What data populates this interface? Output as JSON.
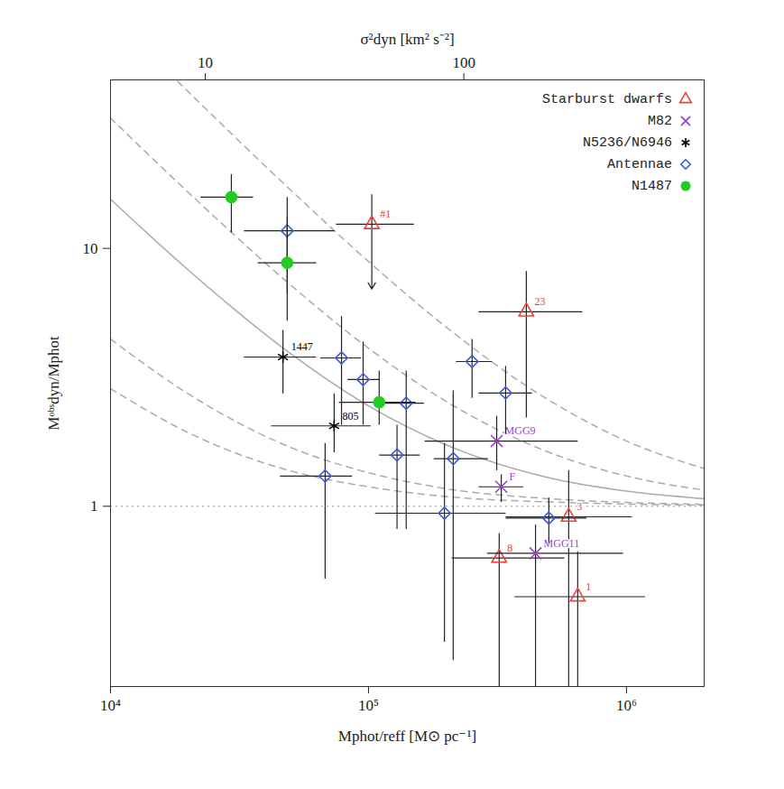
{
  "chart_data": {
    "type": "scatter",
    "x_label": "Mphot/reff [M⊙ pc⁻¹]",
    "y_label": "Mᵒᵇˢdyn/Mphot",
    "x2_label": "σ²dyn [km² s⁻²]",
    "log": true,
    "xlim": [
      10000,
      2000000
    ],
    "ylim": [
      0.2,
      45
    ],
    "x2lim": [
      4.3,
      850
    ],
    "xticks": [
      {
        "value": 10000,
        "label": "10⁴"
      },
      {
        "value": 100000,
        "label": "10⁵"
      },
      {
        "value": 1000000,
        "label": "10⁶"
      }
    ],
    "yticks": [
      1,
      10
    ],
    "x2ticks": [
      10,
      100
    ],
    "legend": "top-right",
    "reference_line": {
      "y": 1,
      "line_style": "dotted",
      "color": "#999999"
    },
    "curves": [
      {
        "line_style": "dashed",
        "color": "#aaaaaa",
        "x": [
          10000,
          20000,
          50000,
          100000,
          200000,
          500000,
          1000000,
          2000000
        ],
        "values": [
          80,
          40.5,
          16.8,
          8.9,
          4.95,
          2.58,
          1.79,
          1.4
        ]
      },
      {
        "line_style": "dashed",
        "color": "#aaaaaa",
        "x": [
          10000,
          20000,
          50000,
          100000,
          200000,
          500000,
          1000000,
          2000000
        ],
        "values": [
          32,
          16.5,
          7.2,
          4.1,
          2.55,
          1.62,
          1.31,
          1.155
        ]
      },
      {
        "line_style": "solid",
        "color": "#aaaaaa",
        "x": [
          10000,
          20000,
          50000,
          100000,
          200000,
          500000,
          1000000,
          2000000
        ],
        "values": [
          15.5,
          8.25,
          3.9,
          2.45,
          1.73,
          1.29,
          1.145,
          1.07
        ]
      },
      {
        "line_style": "dashed",
        "color": "#aaaaaa",
        "x": [
          10000,
          20000,
          50000,
          100000,
          200000,
          500000,
          1000000,
          2000000
        ],
        "values": [
          4.45,
          2.73,
          1.69,
          1.35,
          1.17,
          1.07,
          1.035,
          1.017
        ]
      },
      {
        "line_style": "dashed",
        "color": "#aaaaaa",
        "x": [
          10000,
          20000,
          50000,
          100000,
          200000,
          500000,
          1000000,
          2000000
        ],
        "values": [
          2.86,
          1.93,
          1.37,
          1.19,
          1.09,
          1.04,
          1.02,
          1.01
        ]
      }
    ],
    "series": [
      {
        "name": "Starburst dwarfs",
        "color": "#e8413a",
        "marker": "open_triangle",
        "x": [
          103000,
          409000,
          597000,
          321000,
          647000
        ],
        "values": [
          12.4,
          5.68,
          0.91,
          0.63,
          0.446
        ],
        "x_err_low": [
          74800,
          267000,
          340000,
          210000,
          368000
        ],
        "x_err_high": [
          150000,
          674000,
          1050000,
          574000,
          1180000
        ],
        "y_err_low": [
          6.95,
          2.21,
          0.2,
          0.2,
          0.2
        ],
        "y_err_high": [
          16.2,
          8.16,
          1.38,
          0.785,
          0.668
        ],
        "labels": [
          "#1",
          "23",
          "3",
          "8",
          "1"
        ],
        "upper_limit": [
          true,
          false,
          false,
          false,
          false
        ]
      },
      {
        "name": "M82",
        "color": "#9b3fd0",
        "marker": "times",
        "x": [
          314000,
          327000,
          444000
        ],
        "values": [
          1.79,
          1.19,
          0.657
        ],
        "x_err_low": [
          165000,
          267000,
          288000
        ],
        "x_err_high": [
          647000,
          398000,
          970000
        ],
        "y_err_low": [
          1.38,
          1.04,
          0.2
        ],
        "y_err_high": [
          2.24,
          1.33,
          0.85
        ],
        "labels": [
          "MGG9",
          "F",
          "MGG11"
        ]
      },
      {
        "name": "N5236/N6946",
        "color": "#000000",
        "marker": "asterisk",
        "x": [
          46600,
          73600
        ],
        "values": [
          3.79,
          2.05
        ],
        "x_err_low": [
          32900,
          41900
        ],
        "x_err_high": [
          62700,
          102000
        ],
        "y_err_low": [
          2.74,
          1.62
        ],
        "y_err_high": [
          4.83,
          2.74
        ],
        "labels": [
          "1447",
          "805"
        ]
      },
      {
        "name": "Antennae",
        "color": "#3a5bd9",
        "marker": "open_diamond",
        "x": [
          48400,
          78600,
          95300,
          140000,
          129000,
          67900,
          213000,
          197000,
          252000,
          340000,
          500000
        ],
        "values": [
          11.7,
          3.76,
          3.1,
          2.51,
          1.58,
          1.31,
          1.53,
          0.94,
          3.64,
          2.75,
          0.9
        ],
        "x_err_low": [
          32900,
          65000,
          83000,
          114000,
          110000,
          45400,
          179000,
          106000,
          218000,
          267000,
          340000
        ],
        "x_err_high": [
          73600,
          93700,
          110000,
          164000,
          158000,
          86300,
          290000,
          340000,
          301000,
          430000,
          700000
        ],
        "y_err_low": [
          6.68,
          2.07,
          2.07,
          0.817,
          0.817,
          0.524,
          0.253,
          0.298,
          2.63,
          1.91,
          0.72
        ],
        "y_err_high": [
          15.8,
          5.46,
          4.35,
          3.36,
          2.07,
          1.76,
          2.81,
          1.76,
          4.45,
          3.5,
          1.08
        ]
      },
      {
        "name": "N1487",
        "color": "#22cc22",
        "marker": "filled_circle",
        "x": [
          29400,
          48400,
          110000
        ],
        "values": [
          15.8,
          8.79,
          2.53
        ],
        "x_err_low": [
          22300,
          37200,
          76700
        ],
        "x_err_high": [
          35700,
          62700,
          152000
        ],
        "y_err_low": [
          11.5,
          5.24,
          2.07
        ],
        "y_err_high": [
          19.4,
          13.2,
          3.36
        ]
      }
    ]
  }
}
